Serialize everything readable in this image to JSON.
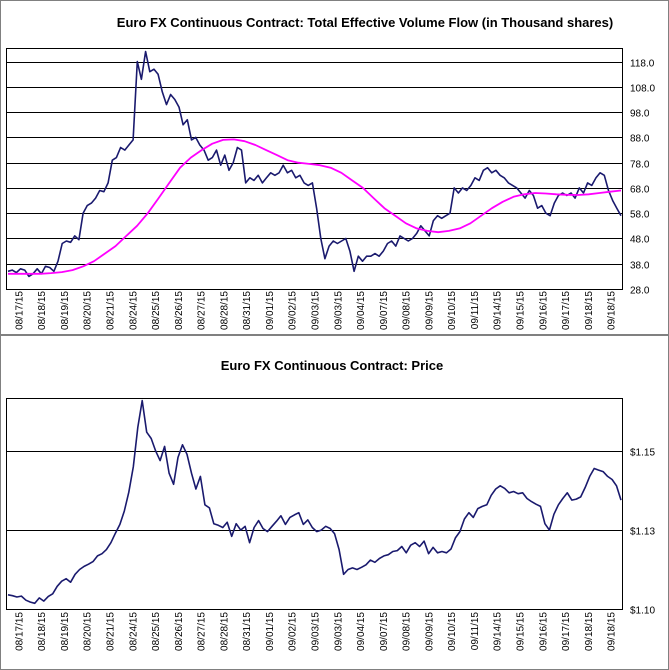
{
  "chart_data": [
    {
      "type": "line",
      "title": "Euro FX Continuous Contract: Total Effective Volume Flow (in Thousand shares)",
      "xlabel": "",
      "ylabel": "",
      "x_tick_labels": [
        "08/17/15",
        "08/18/15",
        "08/19/15",
        "08/20/15",
        "08/21/15",
        "08/24/15",
        "08/25/15",
        "08/26/15",
        "08/27/15",
        "08/28/15",
        "08/31/15",
        "09/01/15",
        "09/02/15",
        "09/03/15",
        "09/03/15",
        "09/04/15",
        "09/07/15",
        "09/08/15",
        "09/09/15",
        "09/10/15",
        "09/11/15",
        "09/14/15",
        "09/15/15",
        "09/16/15",
        "09/17/15",
        "09/18/15",
        "09/18/15"
      ],
      "y_tick_labels": [
        "28.0",
        "38.0",
        "48.0",
        "58.0",
        "68.0",
        "78.0",
        "88.0",
        "98.0",
        "108.0",
        "118.0"
      ],
      "y_ticks": [
        28,
        38,
        48,
        58,
        68,
        78,
        88,
        98,
        108,
        118
      ],
      "ylim": [
        28,
        123
      ],
      "grid": "horizontal",
      "y_axis_side": "right",
      "series": [
        {
          "color": "#1a1a6e",
          "values": [
            35,
            35.5,
            34.5,
            36,
            35.5,
            33,
            34,
            36,
            34,
            37,
            36.5,
            35,
            39,
            46,
            47,
            46.5,
            49,
            47.5,
            58,
            61,
            62,
            64,
            67,
            66.5,
            70,
            79,
            80,
            84,
            83,
            85,
            87,
            118,
            111,
            122,
            114,
            115,
            113,
            106,
            101,
            105,
            103,
            100,
            93,
            95,
            87,
            88,
            85,
            83,
            79,
            80,
            83,
            77,
            81,
            75,
            78,
            84,
            83,
            70,
            72,
            71,
            73,
            70,
            72,
            74,
            73,
            74,
            77,
            74,
            75,
            72,
            73,
            70,
            69,
            70,
            60,
            48,
            40,
            45,
            47,
            46,
            47,
            48,
            43,
            35,
            41,
            39,
            41,
            41,
            42,
            41,
            43,
            46,
            47,
            45,
            49,
            48,
            47,
            48,
            50,
            53,
            51,
            49,
            55,
            57,
            56,
            57,
            58,
            68,
            66,
            68,
            67,
            69,
            72,
            71,
            75,
            76,
            74,
            75,
            73,
            72,
            70,
            69,
            68,
            66,
            64,
            67,
            65,
            60,
            61,
            58,
            57,
            62,
            65,
            66,
            65,
            66,
            64,
            68,
            66,
            70,
            69,
            72,
            74,
            73,
            67,
            63,
            60,
            57
          ]
        },
        {
          "color": "#ff00ff",
          "values": [
            34,
            34,
            34,
            34,
            34.3,
            34.7,
            35.5,
            37,
            39,
            42,
            45,
            49,
            53,
            58,
            64,
            70,
            76,
            80,
            83,
            85.5,
            87,
            87.2,
            86.5,
            85,
            83,
            81,
            79,
            78,
            77.5,
            77,
            76,
            74,
            71,
            68,
            64,
            60,
            57,
            54,
            52,
            51,
            50.5,
            51,
            52,
            54,
            57,
            60,
            62.5,
            64.5,
            65.5,
            66,
            65.8,
            65.5,
            65.3,
            65.2,
            65.5,
            66,
            66.5,
            67
          ]
        }
      ]
    },
    {
      "type": "line",
      "title": "Euro FX Continuous Contract: Price",
      "xlabel": "",
      "ylabel": "",
      "x_tick_labels": [
        "08/17/15",
        "08/18/15",
        "08/19/15",
        "08/20/15",
        "08/21/15",
        "08/24/15",
        "08/25/15",
        "08/26/15",
        "08/27/15",
        "08/28/15",
        "08/31/15",
        "09/01/15",
        "09/02/15",
        "09/03/15",
        "09/03/15",
        "09/04/15",
        "09/07/15",
        "09/08/15",
        "09/09/15",
        "09/10/15",
        "09/11/15",
        "09/14/15",
        "09/15/15",
        "09/16/15",
        "09/17/15",
        "09/18/15",
        "09/18/15"
      ],
      "y_tick_labels": [
        "$1.10",
        "$1.13",
        "$1.15"
      ],
      "y_ticks": [
        1.1,
        1.125,
        1.15
      ],
      "ylim": [
        1.1,
        1.1665
      ],
      "grid": "horizontal",
      "y_axis_side": "right",
      "series": [
        {
          "color": "#1a1a6e",
          "values": [
            1.1045,
            1.1042,
            1.1038,
            1.1041,
            1.1028,
            1.1022,
            1.1018,
            1.1035,
            1.1025,
            1.104,
            1.1048,
            1.1072,
            1.1088,
            1.1096,
            1.1085,
            1.111,
            1.1125,
            1.1135,
            1.1142,
            1.115,
            1.1168,
            1.1175,
            1.1188,
            1.121,
            1.124,
            1.1268,
            1.131,
            1.137,
            1.145,
            1.1575,
            1.166,
            1.156,
            1.154,
            1.15,
            1.147,
            1.1515,
            1.143,
            1.1395,
            1.148,
            1.152,
            1.149,
            1.143,
            1.138,
            1.142,
            1.133,
            1.132,
            1.127,
            1.1265,
            1.1258,
            1.1275,
            1.123,
            1.127,
            1.125,
            1.1262,
            1.121,
            1.1258,
            1.128,
            1.1255,
            1.1245,
            1.1262,
            1.1278,
            1.1295,
            1.1268,
            1.129,
            1.1298,
            1.1305,
            1.1268,
            1.1282,
            1.1258,
            1.1245,
            1.125,
            1.1262,
            1.1255,
            1.1238,
            1.1188,
            1.111,
            1.1125,
            1.113,
            1.1125,
            1.1132,
            1.114,
            1.1155,
            1.1148,
            1.116,
            1.1168,
            1.1172,
            1.1182,
            1.1185,
            1.1198,
            1.1178,
            1.1202,
            1.121,
            1.1198,
            1.1215,
            1.1175,
            1.1195,
            1.1178,
            1.1182,
            1.1178,
            1.119,
            1.1225,
            1.1245,
            1.1285,
            1.1305,
            1.129,
            1.1318,
            1.1325,
            1.133,
            1.136,
            1.138,
            1.139,
            1.1382,
            1.1368,
            1.1372,
            1.1365,
            1.1368,
            1.135,
            1.134,
            1.1332,
            1.1325,
            1.127,
            1.125,
            1.13,
            1.133,
            1.135,
            1.1368,
            1.1345,
            1.1348,
            1.1355,
            1.1385,
            1.142,
            1.1445,
            1.144,
            1.1435,
            1.142,
            1.141,
            1.139,
            1.1345
          ]
        }
      ]
    }
  ]
}
